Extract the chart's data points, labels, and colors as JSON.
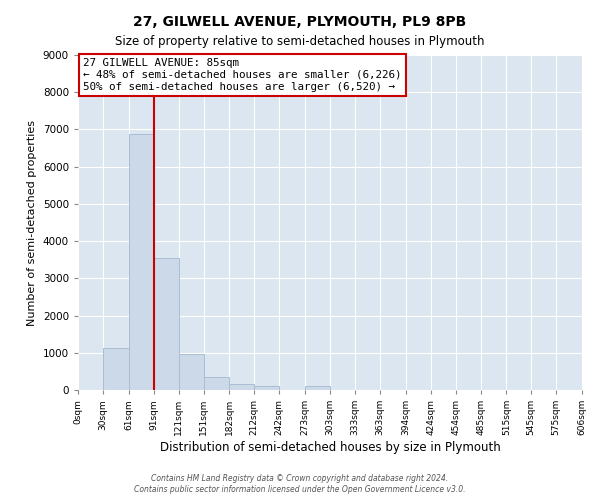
{
  "title": "27, GILWELL AVENUE, PLYMOUTH, PL9 8PB",
  "subtitle": "Size of property relative to semi-detached houses in Plymouth",
  "xlabel": "Distribution of semi-detached houses by size in Plymouth",
  "ylabel": "Number of semi-detached properties",
  "bar_color": "#ccd9e8",
  "bar_edgecolor": "#aabdd4",
  "background_color": "#dce6f0",
  "grid_color": "#ffffff",
  "fig_background": "#ffffff",
  "bin_edges": [
    0,
    30,
    61,
    91,
    121,
    151,
    182,
    212,
    242,
    273,
    303,
    333,
    363,
    394,
    424,
    454,
    485,
    515,
    545,
    575,
    606
  ],
  "bin_labels": [
    "0sqm",
    "30sqm",
    "61sqm",
    "91sqm",
    "121sqm",
    "151sqm",
    "182sqm",
    "212sqm",
    "242sqm",
    "273sqm",
    "303sqm",
    "333sqm",
    "363sqm",
    "394sqm",
    "424sqm",
    "454sqm",
    "485sqm",
    "515sqm",
    "545sqm",
    "575sqm",
    "606sqm"
  ],
  "counts": [
    0,
    1120,
    6880,
    3550,
    960,
    340,
    150,
    100,
    0,
    100,
    0,
    0,
    0,
    0,
    0,
    0,
    0,
    0,
    0,
    0
  ],
  "property_line_x": 91,
  "annotation_title": "27 GILWELL AVENUE: 85sqm",
  "annotation_line1": "← 48% of semi-detached houses are smaller (6,226)",
  "annotation_line2": "50% of semi-detached houses are larger (6,520) →",
  "annotation_box_facecolor": "#ffffff",
  "annotation_box_edgecolor": "#cc0000",
  "vline_color": "#cc0000",
  "ylim": [
    0,
    9000
  ],
  "yticks": [
    0,
    1000,
    2000,
    3000,
    4000,
    5000,
    6000,
    7000,
    8000,
    9000
  ],
  "footer_line1": "Contains HM Land Registry data © Crown copyright and database right 2024.",
  "footer_line2": "Contains public sector information licensed under the Open Government Licence v3.0."
}
